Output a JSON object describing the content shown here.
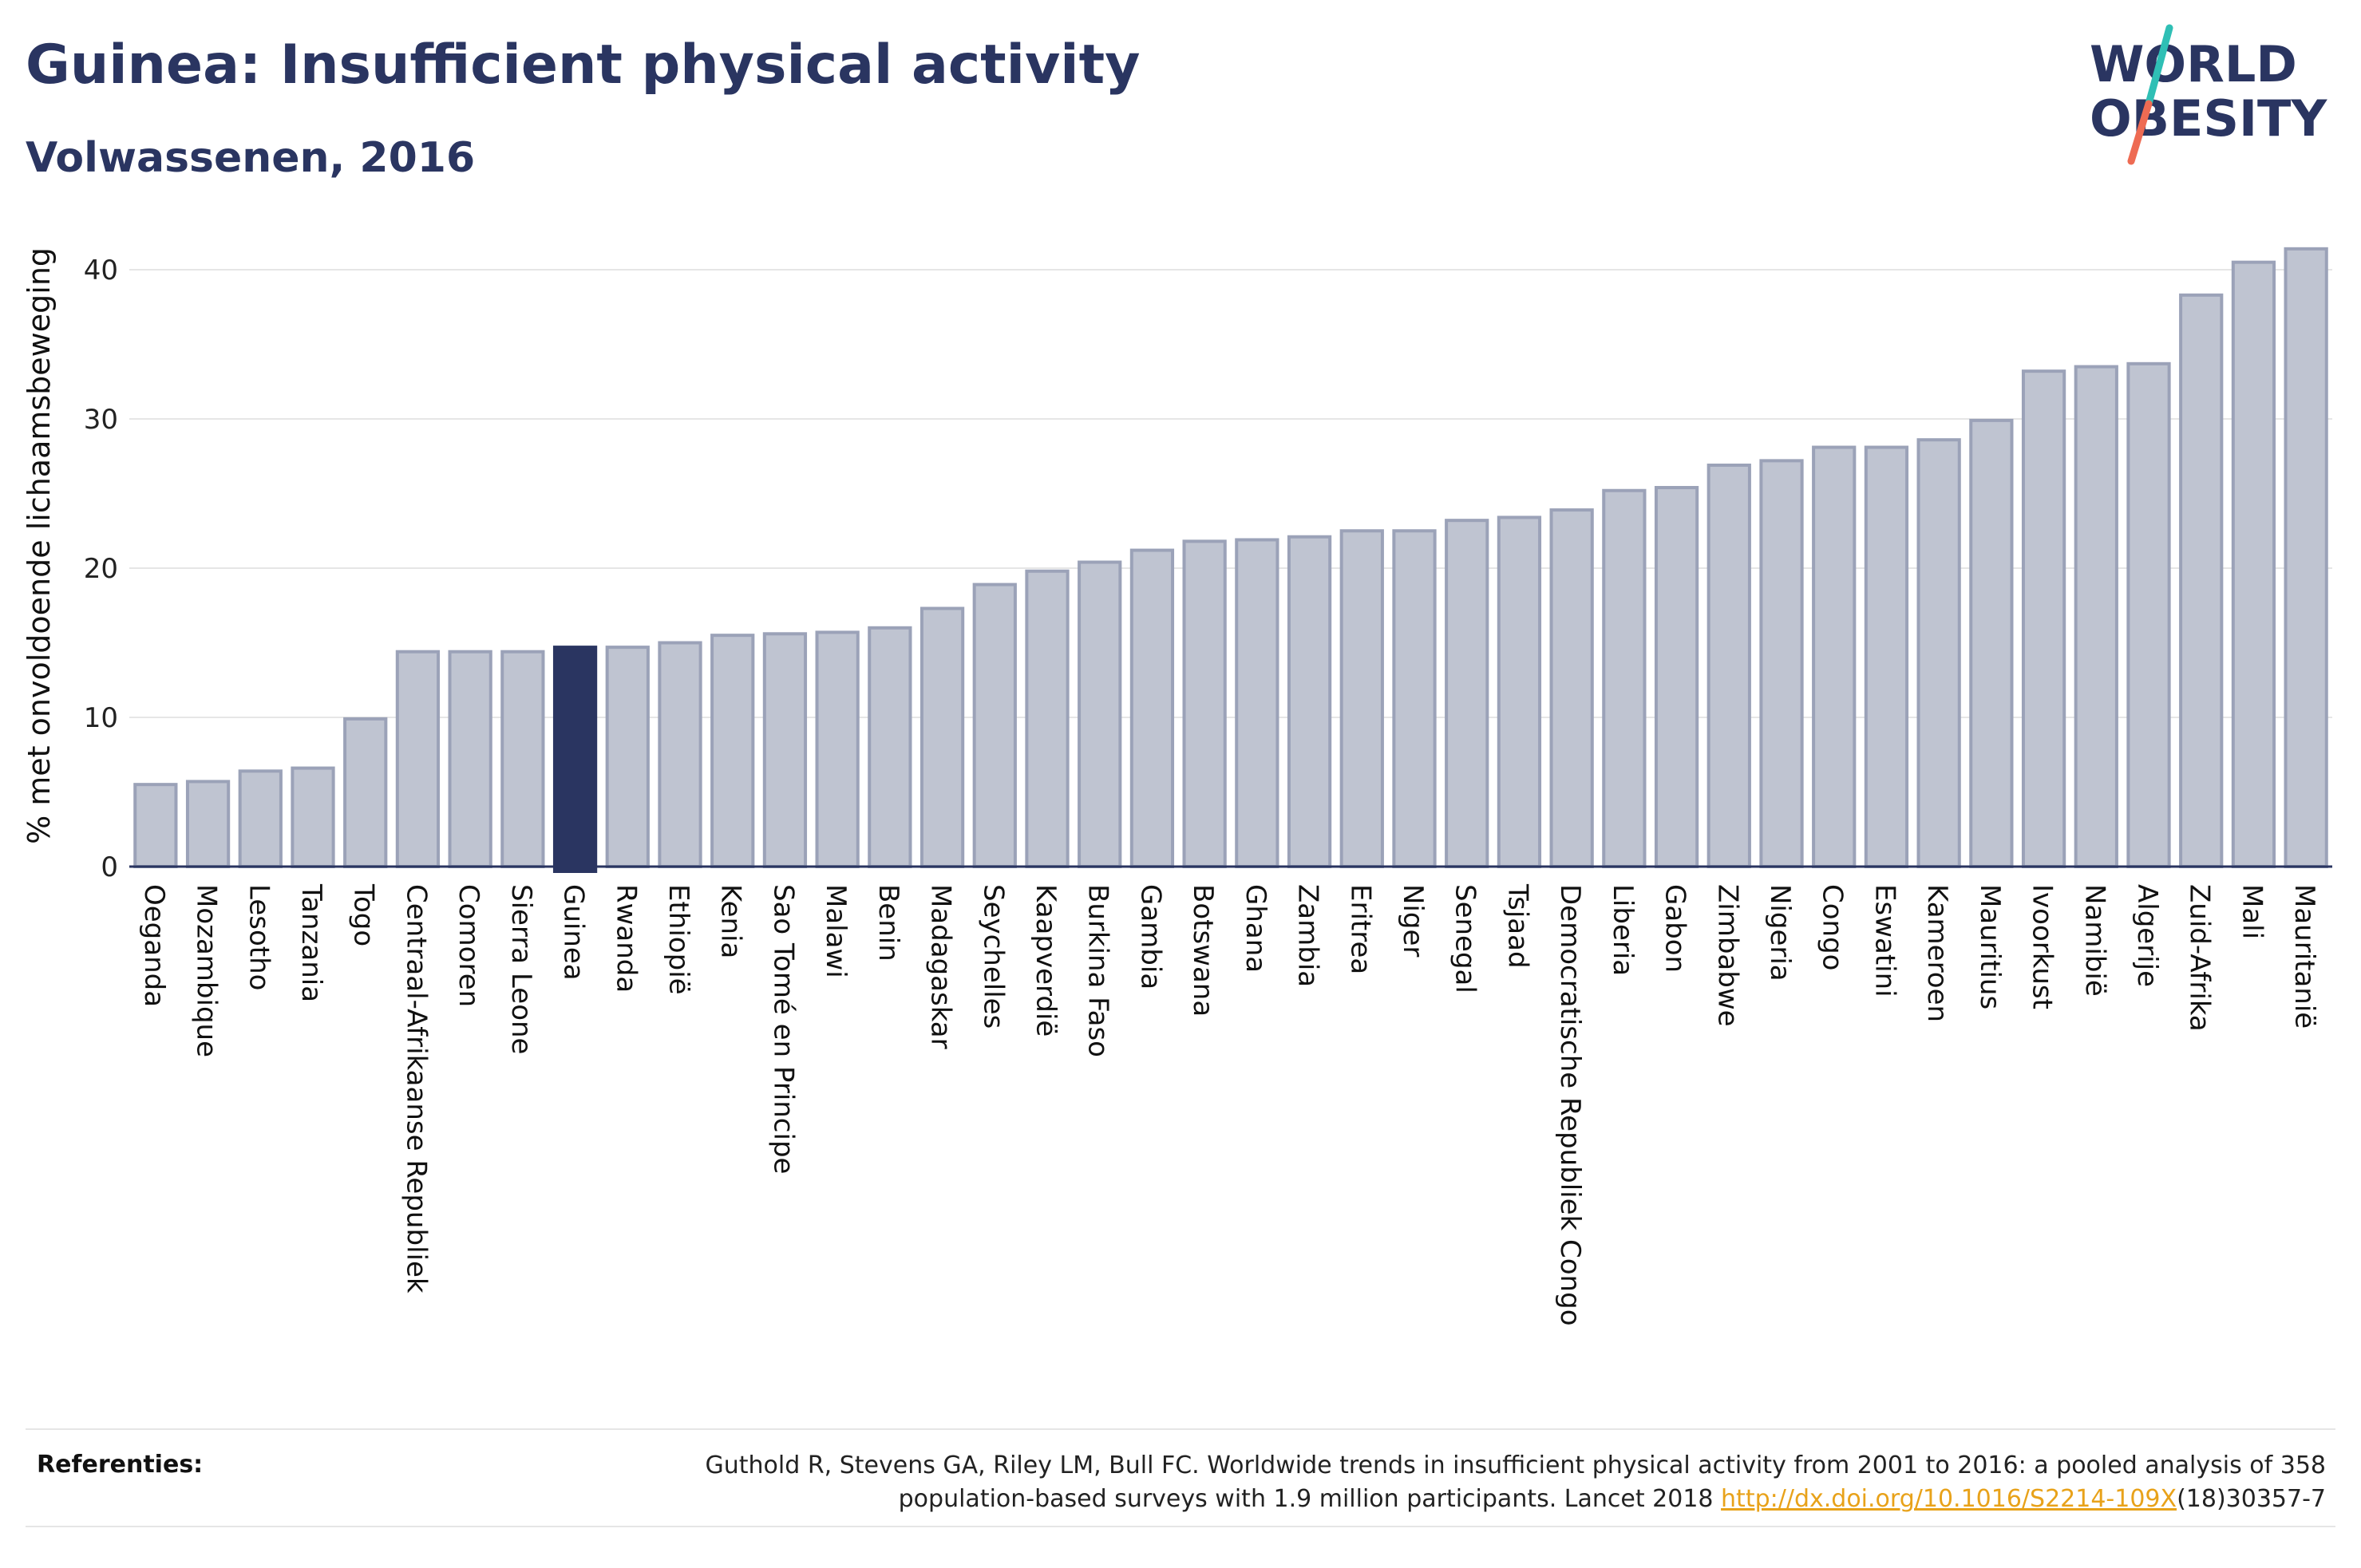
{
  "header": {
    "title": "Guinea: Insufficient physical activity",
    "subtitle": "Volwassenen, 2016"
  },
  "logo": {
    "line1": "WORLD",
    "line2": "OBESITY",
    "colors": {
      "text": "#2a3561",
      "slash_top": "#2fbfb5",
      "slash_bottom": "#ee6b53"
    }
  },
  "colors": {
    "bar": "#bfc4d1",
    "bar_stroke": "#9ba2b8",
    "highlight": "#2a3561",
    "grid": "#e6e6e6",
    "axis": "#2a3561"
  },
  "chart_data": {
    "type": "bar",
    "title": "Guinea: Insufficient physical activity",
    "subtitle": "Volwassenen, 2016",
    "xlabel": "",
    "ylabel": "% met onvoldoende lichaamsbeweging",
    "ylim": [
      0,
      43
    ],
    "yticks": [
      0,
      10,
      20,
      30,
      40
    ],
    "grid": true,
    "highlight": "Guinea",
    "categories": [
      "Oeganda",
      "Mozambique",
      "Lesotho",
      "Tanzania",
      "Togo",
      "Centraal-Afrikaanse Republiek",
      "Comoren",
      "Sierra Leone",
      "Guinea",
      "Rwanda",
      "Ethiopië",
      "Kenia",
      "Sao Tomé en Principe",
      "Malawi",
      "Benin",
      "Madagaskar",
      "Seychelles",
      "Kaapverdië",
      "Burkina Faso",
      "Gambia",
      "Botswana",
      "Ghana",
      "Zambia",
      "Eritrea",
      "Niger",
      "Senegal",
      "Tsjaad",
      "Democratische Republiek Congo",
      "Liberia",
      "Gabon",
      "Zimbabwe",
      "Nigeria",
      "Congo",
      "Eswatini",
      "Kameroen",
      "Mauritius",
      "Ivoorkust",
      "Namibië",
      "Algerije",
      "Zuid-Afrika",
      "Mali",
      "Mauritanië"
    ],
    "values": [
      5.5,
      5.7,
      6.4,
      6.6,
      9.9,
      14.4,
      14.4,
      14.4,
      14.7,
      14.7,
      15.0,
      15.5,
      15.6,
      15.7,
      16.0,
      17.3,
      18.9,
      19.8,
      20.4,
      21.2,
      21.8,
      21.9,
      22.1,
      22.5,
      22.5,
      23.2,
      23.4,
      23.9,
      25.2,
      25.4,
      26.9,
      27.2,
      28.1,
      28.1,
      28.6,
      29.9,
      33.2,
      33.5,
      33.7,
      38.3,
      40.5,
      41.4
    ]
  },
  "references": {
    "label": "Referenties:",
    "text_line1": "Guthold R, Stevens GA, Riley LM, Bull FC. Worldwide trends in insufficient physical activity from 2001 to 2016: a pooled analysis of 358",
    "text_line2_prefix": "population-based surveys with 1.9 million participants. Lancet 2018 ",
    "link_text": "http://dx.doi.org/10.1016/S2214-109X",
    "text_line2_suffix": "(18)30357-7"
  }
}
